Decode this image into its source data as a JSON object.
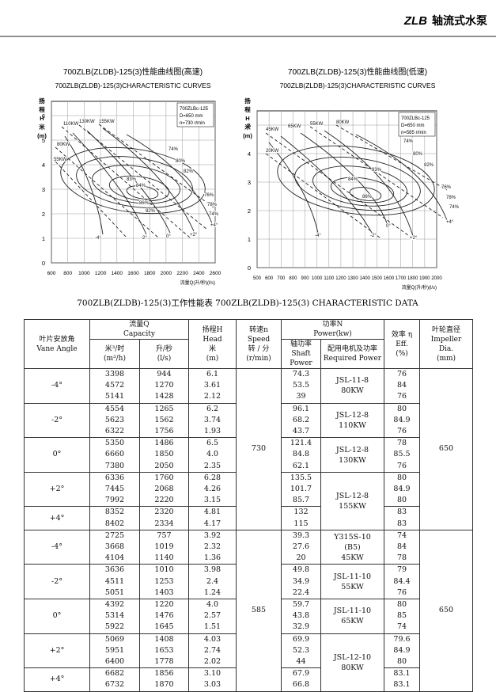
{
  "header": {
    "brand": "ZLB",
    "title": "轴流式水泵"
  },
  "charts": [
    {
      "title": "700ZLB(ZLDB)-125(3)性能曲线图(高速)",
      "subtitle": "700ZLB(ZLDB)-125(3)CHARACTERISTIC CURVES",
      "y_label": [
        "扬",
        "程",
        "H",
        "米",
        "(m)"
      ],
      "x_label": "流量Q(升/秒)(l/s)",
      "legend": [
        "700ZLBc-125",
        "D=650 mm",
        "n=730 r/min"
      ],
      "xlim": [
        600,
        2600
      ],
      "xticks": [
        600,
        800,
        1000,
        1200,
        1400,
        1600,
        1800,
        2000,
        2200,
        2400,
        2600
      ],
      "ylim": [
        0,
        6
      ],
      "yticks": [
        0,
        1,
        2,
        3,
        4,
        5,
        6
      ],
      "annotations": [
        "110KW",
        "130KW",
        "155KW",
        "80KW",
        "55KW",
        "74%",
        "80%",
        "82%",
        "83%",
        "84%",
        "86%",
        "82%",
        "76%",
        "78%",
        "74%",
        "-4°",
        "-2°",
        "0°",
        "+2°",
        "+4°"
      ]
    },
    {
      "title": "700ZLB(ZLDB)-125(3)性能曲线图(低速)",
      "subtitle": "700ZLB(ZLDB)-125(3)CHARACTERISTIC CURVES",
      "y_label": [
        "扬",
        "程",
        "H",
        "米",
        "(m)"
      ],
      "x_label": "流量Q(升/秒)(l/s)",
      "legend": [
        "700ZLBc-125",
        "D=650 mm",
        "n=585 r/min"
      ],
      "xlim": [
        500,
        2000
      ],
      "xticks": [
        500,
        600,
        700,
        800,
        900,
        1000,
        1100,
        1200,
        1300,
        1400,
        1500,
        1600,
        1700,
        1800,
        1900,
        2000
      ],
      "ylim": [
        0,
        5
      ],
      "yticks": [
        0,
        1,
        2,
        3,
        4,
        5
      ],
      "annotations": [
        "45KW",
        "55KW",
        "65KW",
        "80KW",
        "20KW",
        "74%",
        "80%",
        "82%",
        "83%",
        "84%",
        "86%",
        "76%",
        "78%",
        "74%",
        "-4°",
        "-2°",
        "0°",
        "+2°",
        "+4°"
      ]
    }
  ],
  "table": {
    "title": "700ZLB(ZLDB)-125(3)工作性能表 700ZLB(ZLDB)-125(3) CHARACTERISTIC DATA",
    "headers": {
      "angle": [
        "叶片安放角",
        "Vane Angle"
      ],
      "capacity": [
        "流量Q",
        "Capacity"
      ],
      "m3h": [
        "米³/时",
        "(m³/h)"
      ],
      "ls": [
        "升/秒",
        "(l/s)"
      ],
      "head": [
        "扬程H",
        "Head",
        "米",
        "(m)"
      ],
      "speed": [
        "转速n",
        "Speed",
        "转 / 分",
        "(r/min)"
      ],
      "power": [
        "功率N",
        "Power(kw)"
      ],
      "shaft": [
        "轴功率",
        "Shaft Power"
      ],
      "required": [
        "配用电机及功率",
        "Required Power"
      ],
      "eff": [
        "效率 η",
        "Eff.",
        "(%)"
      ],
      "impeller": [
        "叶轮直径",
        "Impeller",
        "Dia.",
        "(mm)"
      ]
    },
    "sections": [
      {
        "speed": "730",
        "impeller": "650",
        "groups": [
          {
            "angle": "-4°",
            "rows": [
              [
                "3398",
                "944",
                "6.1",
                "74.3",
                "76"
              ],
              [
                "4572",
                "1270",
                "3.61",
                "53.5",
                "84"
              ],
              [
                "5141",
                "1428",
                "2.12",
                "39",
                "76"
              ]
            ]
          },
          {
            "angle": "-2°",
            "rows": [
              [
                "4554",
                "1265",
                "6.2",
                "96.1",
                "80"
              ],
              [
                "5623",
                "1562",
                "3.74",
                "68.2",
                "84.9"
              ],
              [
                "6322",
                "1756",
                "1.93",
                "43.7",
                "76"
              ]
            ]
          },
          {
            "angle": "0°",
            "rows": [
              [
                "5350",
                "1486",
                "6.5",
                "121.4",
                "78"
              ],
              [
                "6660",
                "1850",
                "4.0",
                "84.8",
                "85.5"
              ],
              [
                "7380",
                "2050",
                "2.35",
                "62.1",
                "76"
              ]
            ]
          },
          {
            "angle": "+2°",
            "rows": [
              [
                "6336",
                "1760",
                "6.28",
                "135.5",
                "80"
              ],
              [
                "7445",
                "2068",
                "4.26",
                "101.7",
                "84.9"
              ],
              [
                "7992",
                "2220",
                "3.15",
                "85.7",
                "80"
              ]
            ]
          },
          {
            "angle": "+4°",
            "rows": [
              [
                "8352",
                "2320",
                "4.81",
                "132",
                "83"
              ],
              [
                "8402",
                "2334",
                "4.17",
                "115",
                "83"
              ]
            ]
          }
        ],
        "motors": [
          [
            "JSL-11-8",
            "80KW"
          ],
          [
            "JSL-12-8",
            "110KW"
          ],
          [
            "JSL-12-8",
            "130KW"
          ],
          [
            "JSL-12-8",
            "155KW"
          ]
        ]
      },
      {
        "speed": "585",
        "impeller": "650",
        "groups": [
          {
            "angle": "-4°",
            "rows": [
              [
                "2725",
                "757",
                "3.92",
                "39.3",
                "74"
              ],
              [
                "3668",
                "1019",
                "2.32",
                "27.6",
                "84"
              ],
              [
                "4104",
                "1140",
                "1.36",
                "20",
                "78"
              ]
            ]
          },
          {
            "angle": "-2°",
            "rows": [
              [
                "3636",
                "1010",
                "3.98",
                "49.8",
                "79"
              ],
              [
                "4511",
                "1253",
                "2.4",
                "34.9",
                "84.4"
              ],
              [
                "5051",
                "1403",
                "1.24",
                "22.4",
                "76"
              ]
            ]
          },
          {
            "angle": "0°",
            "rows": [
              [
                "4392",
                "1220",
                "4.0",
                "59.7",
                "80"
              ],
              [
                "5314",
                "1476",
                "2.57",
                "43.8",
                "85"
              ],
              [
                "5922",
                "1645",
                "1.51",
                "32.9",
                "74"
              ]
            ]
          },
          {
            "angle": "+2°",
            "rows": [
              [
                "5069",
                "1408",
                "4.03",
                "69.9",
                "79.6"
              ],
              [
                "5951",
                "1653",
                "2.74",
                "52.3",
                "84.9"
              ],
              [
                "6400",
                "1778",
                "2.02",
                "44",
                "80"
              ]
            ]
          },
          {
            "angle": "+4°",
            "rows": [
              [
                "6682",
                "1856",
                "3.10",
                "67.9",
                "83.1"
              ],
              [
                "6732",
                "1870",
                "3.03",
                "66.8",
                "83.1"
              ]
            ]
          }
        ],
        "motors": [
          [
            "Y315S-10",
            "(B5)",
            "45KW"
          ],
          [
            "JSL-11-10",
            "55KW"
          ],
          [
            "JSL-11-10",
            "65KW"
          ],
          [
            "JSL-12-10",
            "80KW"
          ]
        ]
      }
    ]
  }
}
